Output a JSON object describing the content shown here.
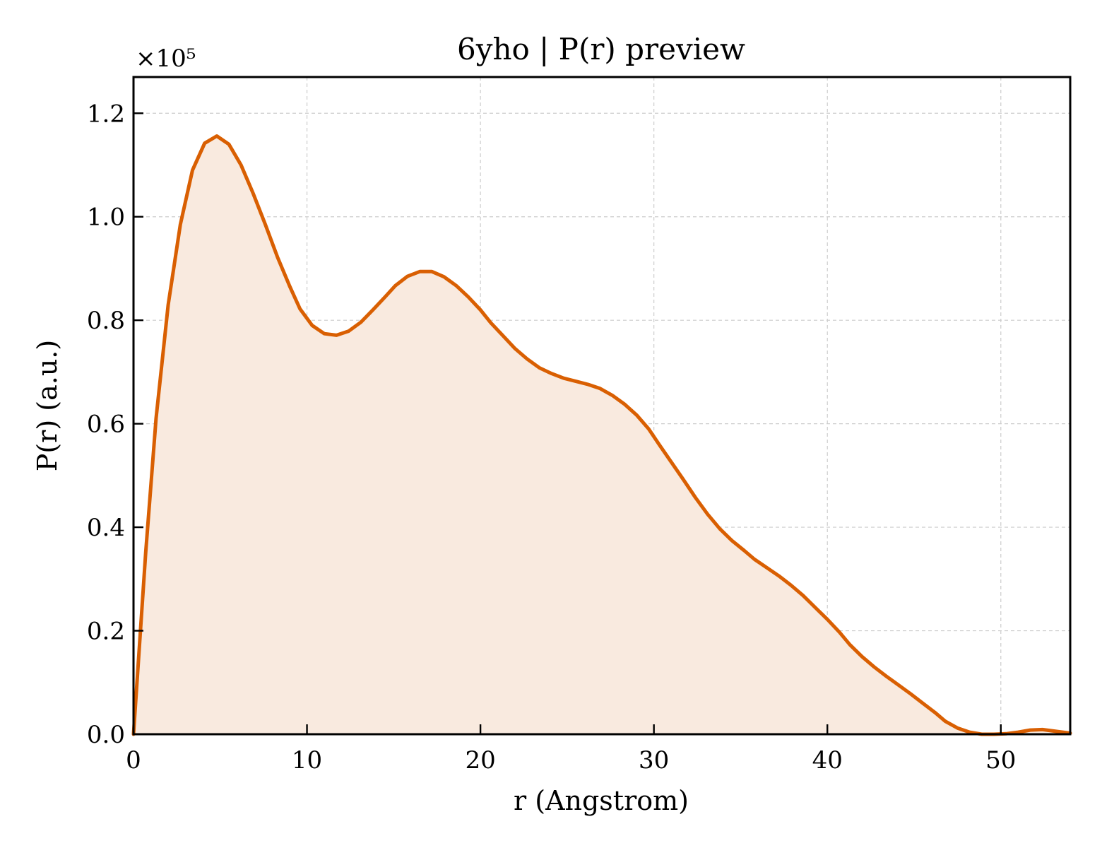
{
  "chart_data": {
    "type": "area",
    "title": "6yho | P(r) preview",
    "xlabel": "r (Angstrom)",
    "ylabel": "P(r) (a.u.)",
    "y_offset_label": "×10⁵",
    "y_multiplier": 100000,
    "xlim": [
      0,
      54
    ],
    "ylim": [
      0,
      1.27
    ],
    "x_ticks": [
      0,
      10,
      20,
      30,
      40,
      50
    ],
    "x_tick_labels": [
      "0",
      "10",
      "20",
      "30",
      "40",
      "50"
    ],
    "y_ticks": [
      0.0,
      0.2,
      0.4,
      0.6,
      0.8,
      1.0,
      1.2
    ],
    "y_tick_labels": [
      "0.0",
      "0.2",
      "0.4",
      "0.6",
      "0.8",
      "1.0",
      "1.2"
    ],
    "grid": true,
    "colors": {
      "line": "#d95f02",
      "fill": "#f9eadf"
    },
    "series": [
      {
        "x": [
          0,
          0.7,
          1.3,
          2.0,
          2.7,
          3.4,
          4.1,
          4.8,
          5.5,
          6.2,
          6.9,
          7.6,
          8.3,
          9.0,
          9.6,
          10.3,
          11.0,
          11.7,
          12.4,
          13.1,
          13.8,
          14.5,
          15.1,
          15.8,
          16.5,
          17.2,
          17.9,
          18.6,
          19.3,
          20.0,
          20.6,
          21.3,
          22.0,
          22.7,
          23.4,
          24.1,
          24.8,
          25.5,
          26.2,
          26.9,
          27.6,
          28.3,
          29.0,
          29.7,
          30.3,
          31.0,
          31.7,
          32.4,
          33.1,
          33.8,
          34.5,
          35.2,
          35.8,
          36.5,
          37.2,
          37.9,
          38.6,
          39.3,
          40.0,
          40.7,
          41.3,
          42.0,
          42.7,
          43.4,
          44.1,
          44.8,
          45.5,
          46.2,
          46.8,
          47.5,
          48.2,
          48.9,
          49.6,
          50.3,
          51.0,
          51.7,
          52.4,
          53.1,
          54.0
        ],
        "y": [
          0.0,
          0.35,
          0.61,
          0.83,
          0.985,
          1.09,
          1.142,
          1.156,
          1.14,
          1.1,
          1.045,
          0.985,
          0.922,
          0.866,
          0.822,
          0.79,
          0.774,
          0.771,
          0.779,
          0.796,
          0.82,
          0.845,
          0.867,
          0.885,
          0.894,
          0.894,
          0.884,
          0.867,
          0.845,
          0.82,
          0.795,
          0.77,
          0.745,
          0.725,
          0.708,
          0.697,
          0.688,
          0.682,
          0.676,
          0.668,
          0.655,
          0.638,
          0.617,
          0.59,
          0.56,
          0.526,
          0.492,
          0.457,
          0.425,
          0.397,
          0.374,
          0.355,
          0.338,
          0.322,
          0.306,
          0.288,
          0.268,
          0.245,
          0.222,
          0.197,
          0.173,
          0.15,
          0.13,
          0.112,
          0.095,
          0.078,
          0.06,
          0.042,
          0.025,
          0.012,
          0.004,
          0.0,
          0.0,
          0.001,
          0.004,
          0.008,
          0.009,
          0.006,
          0.002
        ]
      }
    ]
  }
}
